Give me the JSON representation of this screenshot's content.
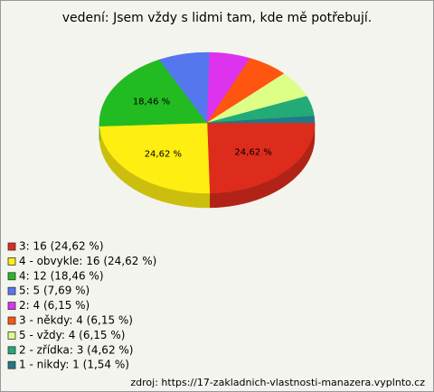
{
  "chart_data": {
    "type": "pie",
    "title": "vedení: Jsem vždy s lidmi tam, kde mě potřebují.",
    "categories": [
      "3: 16 (24,62 %)",
      "4 - obvykle: 16 (24,62 %)",
      "4: 12 (18,46 %)",
      "5: 5 (7,69 %)",
      "2: 4 (6,15 %)",
      "3 - někdy: 4 (6,15 %)",
      "5 - vždy: 4 (6,15 %)",
      "2 - zřídka: 3 (4,62 %)",
      "1 - nikdy: 1 (1,54 %)"
    ],
    "values": [
      24.62,
      24.62,
      18.46,
      7.69,
      6.15,
      6.15,
      6.15,
      4.62,
      1.54
    ],
    "value_labels": [
      "24,62 %",
      "24,62 %",
      "18,46 %",
      null,
      null,
      null,
      null,
      null,
      null
    ],
    "colors": [
      "#dd2c1c",
      "#ffee11",
      "#22bb22",
      "#5577ee",
      "#dd33ee",
      "#ff5511",
      "#ddff88",
      "#22aa77",
      "#227788"
    ],
    "source": "zdroj: https://17-zakladnich-vlastnosti-manazera.vyplnto.cz"
  }
}
